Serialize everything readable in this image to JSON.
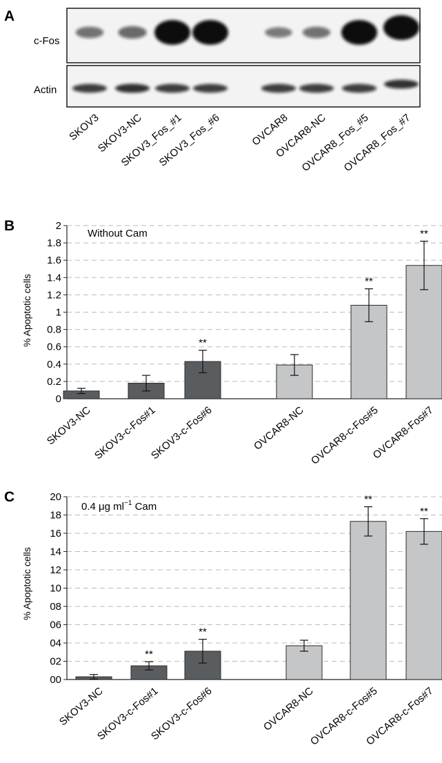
{
  "panel_a": {
    "letter": "A",
    "row_labels": [
      "c-Fos",
      "Actin"
    ],
    "lanes": [
      "SKOV3",
      "SKOV3-NC",
      "SKOV3_Fos_#1",
      "SKOV3_Fos_#6",
      "OVCAR8",
      "OVCAR8-NC",
      "OVCAR8_Fos_#5",
      "OVCAR8_Fos_#7"
    ],
    "cfos_intensity": [
      0.35,
      0.4,
      1.0,
      1.0,
      0.3,
      0.35,
      1.0,
      1.0
    ],
    "actin_intensity": [
      0.8,
      0.85,
      0.8,
      0.8,
      0.8,
      0.8,
      0.8,
      0.85
    ]
  },
  "chart_data": [
    {
      "type": "bar",
      "letter": "B",
      "annotation": "Without Cam",
      "ylabel": "% Apoptotic cells",
      "ylim": [
        0,
        2
      ],
      "ytick_labels": [
        "0",
        "0.2",
        "0.4",
        "0.6",
        "0.8",
        "1",
        "1.2",
        "1.4",
        "1.6",
        "1.8",
        "2"
      ],
      "grid": "dashed horizontal",
      "categories": [
        "SKOV3-NC",
        "SKOV3-c-Fos#1",
        "SKOV3-c-Fos#6",
        "OVCAR8-NC",
        "OVCAR8-c-Fos#5",
        "OVCAR8-Fos#7"
      ],
      "values": [
        0.09,
        0.18,
        0.43,
        0.39,
        1.08,
        1.54
      ],
      "errors": [
        0.03,
        0.09,
        0.13,
        0.12,
        0.19,
        0.28
      ],
      "significance": [
        "",
        "",
        "**",
        "",
        "**",
        "**"
      ],
      "colors": [
        "#5a5d60",
        "#5a5d60",
        "#5a5d60",
        "#c4c6c8",
        "#c4c6c8",
        "#c4c6c8"
      ]
    },
    {
      "type": "bar",
      "letter": "C",
      "annotation": "0.4 μg ml",
      "annotation_sup": "−1",
      "annotation_suffix": " Cam",
      "ylabel": "% Apoptotic cells",
      "ylim": [
        0,
        20
      ],
      "ytick_labels": [
        "00",
        "02",
        "04",
        "06",
        "08",
        "10",
        "12",
        "14",
        "16",
        "18",
        "20"
      ],
      "grid": "dashed horizontal",
      "categories": [
        "SKOV3-NC",
        "SKOV3-c-Fos#1",
        "SKOV3-c-Fos#6",
        "OVCAR8-NC",
        "OVCAR8-c-Fos#5",
        "OVCAR8-c-Fos#7"
      ],
      "values": [
        0.3,
        1.5,
        3.1,
        3.7,
        17.3,
        16.2
      ],
      "errors": [
        0.25,
        0.45,
        1.3,
        0.6,
        1.6,
        1.4
      ],
      "significance": [
        "",
        "**",
        "**",
        "",
        "**",
        "**"
      ],
      "colors": [
        "#5a5d60",
        "#5a5d60",
        "#5a5d60",
        "#c4c6c8",
        "#c4c6c8",
        "#c4c6c8"
      ]
    }
  ]
}
